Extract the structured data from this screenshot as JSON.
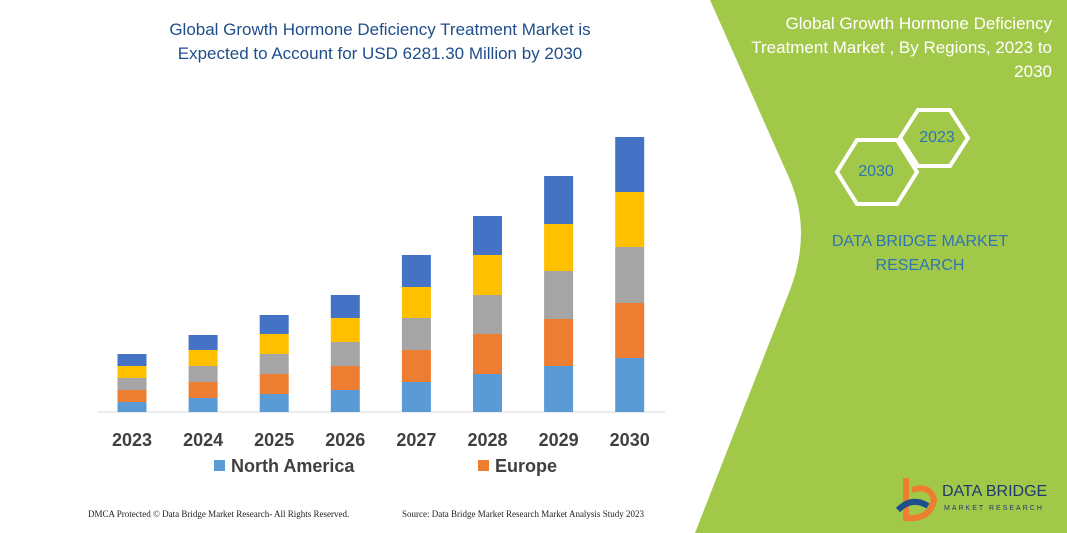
{
  "chart_data": {
    "type": "stacked_bar",
    "title": "Global Growth Hormone Deficiency Treatment Market is Expected to Account for USD 6281.30 Million by 2030",
    "categories": [
      "2023",
      "2024",
      "2025",
      "2026",
      "2027",
      "2028",
      "2029",
      "2030"
    ],
    "series": [
      {
        "name": "North America",
        "color": "#5b9bd5",
        "values": [
          10,
          14,
          18,
          22,
          30,
          38,
          46,
          54
        ]
      },
      {
        "name": "Europe",
        "color": "#ed7d31",
        "values": [
          12,
          16,
          20,
          24,
          32,
          40,
          47,
          55
        ]
      },
      {
        "color": "#a5a5a5",
        "values": [
          12,
          16,
          20,
          24,
          32,
          39,
          48,
          56
        ]
      },
      {
        "color": "#ffc000",
        "values": [
          12,
          16,
          20,
          24,
          31,
          40,
          47,
          55
        ]
      },
      {
        "color": "#4472c4",
        "values": [
          12,
          15,
          19,
          23,
          32,
          39,
          48,
          55
        ]
      }
    ],
    "ylim": [
      0,
      280
    ]
  },
  "panel": {
    "title": "Global Growth Hormone Deficiency Treatment Market , By Regions, 2023 to 2030",
    "hex_top": "2023",
    "hex_bottom": "2030",
    "brand": "DATA BRIDGE MARKET RESEARCH"
  },
  "logo": {
    "name": "DATA BRIDGE",
    "tagline": "MARKET RESEARCH"
  },
  "footer": {
    "left": "DMCA Protected © Data Bridge Market Research-  All Rights Reserved.",
    "right": "Source: Data Bridge Market Research  Market Analysis Study 2023"
  }
}
